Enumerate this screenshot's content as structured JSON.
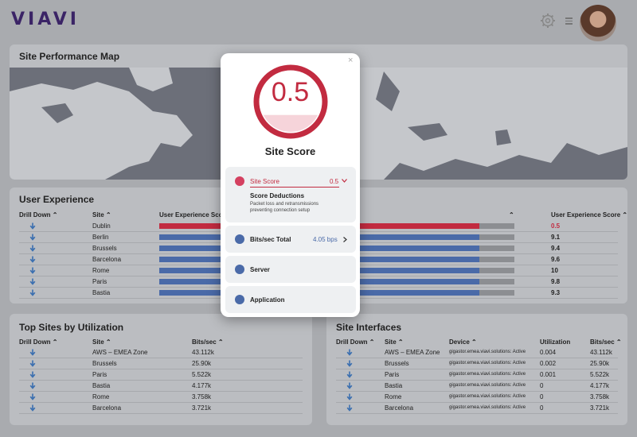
{
  "header": {
    "logo": "VIAVI"
  },
  "map_card": {
    "title": "Site Performance Map"
  },
  "ux_card": {
    "title": "User Experience",
    "left_headers": {
      "drill_down": "Drill Down",
      "site": "Site",
      "score": "User Experience Score"
    },
    "right_headers": {
      "score": "User Experience Score"
    },
    "rows": [
      {
        "site": "Dublin",
        "score": "0.5",
        "status": "red"
      },
      {
        "site": "Berlin",
        "score": "9.1",
        "status": "blue"
      },
      {
        "site": "Brussels",
        "score": "9.4",
        "status": "blue"
      },
      {
        "site": "Barcelona",
        "score": "9.6",
        "status": "blue"
      },
      {
        "site": "Rome",
        "score": "10",
        "status": "blue"
      },
      {
        "site": "Paris",
        "score": "9.8",
        "status": "blue"
      },
      {
        "site": "Bastia",
        "score": "9.3",
        "status": "blue"
      }
    ]
  },
  "top_sites": {
    "title": "Top Sites by Utilization",
    "headers": {
      "drill_down": "Drill Down",
      "site": "Site",
      "bits": "Bits/sec"
    },
    "rows": [
      {
        "site": "AWS – EMEA Zone",
        "bits": "43.112k"
      },
      {
        "site": "Brussels",
        "bits": "25.90k"
      },
      {
        "site": "Paris",
        "bits": "5.522k"
      },
      {
        "site": "Bastia",
        "bits": "4.177k"
      },
      {
        "site": "Rome",
        "bits": "3.758k"
      },
      {
        "site": "Barcelona",
        "bits": "3.721k"
      }
    ]
  },
  "site_interfaces": {
    "title": "Site Interfaces",
    "headers": {
      "drill_down": "Drill Down",
      "site": "Site",
      "device": "Device",
      "utilization": "Utilization",
      "bits": "Bits/sec"
    },
    "rows": [
      {
        "site": "AWS – EMEA Zone",
        "device": "gigastor.emea.viavi.solutions: Active",
        "utilization": "0.004",
        "bits": "43.112k"
      },
      {
        "site": "Brussels",
        "device": "gigastor.emea.viavi.solutions: Active",
        "utilization": "0.002",
        "bits": "25.90k"
      },
      {
        "site": "Paris",
        "device": "gigastor.emea.viavi.solutions: Active",
        "utilization": "0.001",
        "bits": "5.522k"
      },
      {
        "site": "Bastia",
        "device": "gigastor.emea.viavi.solutions: Active",
        "utilization": "0",
        "bits": "4.177k"
      },
      {
        "site": "Rome",
        "device": "gigastor.emea.viavi.solutions: Active",
        "utilization": "0",
        "bits": "3.758k"
      },
      {
        "site": "Barcelona",
        "device": "gigastor.emea.viavi.solutions: Active",
        "utilization": "0",
        "bits": "3.721k"
      }
    ]
  },
  "modal": {
    "close_icon": "×",
    "score": "0.5",
    "score_fill_fraction": 0.28,
    "title": "Site Score",
    "score_panel": {
      "label": "Site Score",
      "value": "0.5",
      "deduction_title": "Score Deductions",
      "deduction_text_1": "Packet loss and retransmissions",
      "deduction_text_2": "preventing connection setup"
    },
    "bits_panel": {
      "label": "Bits/sec Total",
      "value": "4.05 bps"
    },
    "server_panel": {
      "label": "Server"
    },
    "application_panel": {
      "label": "Application"
    }
  },
  "colors": {
    "accent_red": "#c22b40",
    "accent_blue": "#4a6aa8",
    "brand": "#3b2466"
  }
}
